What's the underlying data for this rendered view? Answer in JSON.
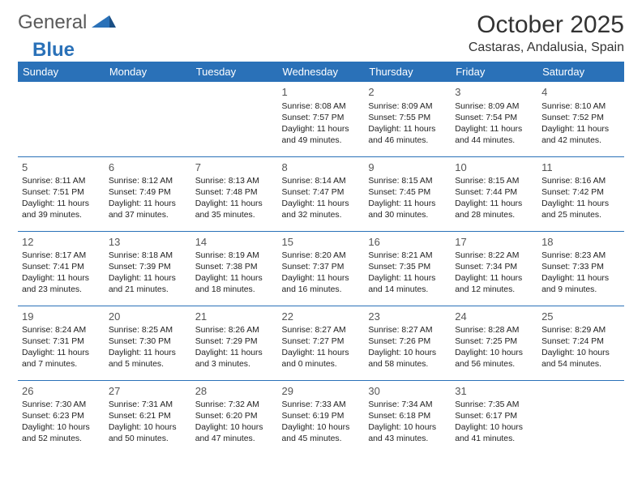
{
  "logo": {
    "general": "General",
    "blue": "Blue"
  },
  "title": "October 2025",
  "subtitle": "Castaras, Andalusia, Spain",
  "colors": {
    "brand": "#2a71b8",
    "text": "#333333",
    "logo_gray": "#5a5a5a",
    "bg": "#ffffff",
    "cell_text": "#222222"
  },
  "weekdays": [
    "Sunday",
    "Monday",
    "Tuesday",
    "Wednesday",
    "Thursday",
    "Friday",
    "Saturday"
  ],
  "weeks": [
    [
      {
        "n": "",
        "l1": "",
        "l2": "",
        "l3": "",
        "l4": ""
      },
      {
        "n": "",
        "l1": "",
        "l2": "",
        "l3": "",
        "l4": ""
      },
      {
        "n": "",
        "l1": "",
        "l2": "",
        "l3": "",
        "l4": ""
      },
      {
        "n": "1",
        "l1": "Sunrise: 8:08 AM",
        "l2": "Sunset: 7:57 PM",
        "l3": "Daylight: 11 hours",
        "l4": "and 49 minutes."
      },
      {
        "n": "2",
        "l1": "Sunrise: 8:09 AM",
        "l2": "Sunset: 7:55 PM",
        "l3": "Daylight: 11 hours",
        "l4": "and 46 minutes."
      },
      {
        "n": "3",
        "l1": "Sunrise: 8:09 AM",
        "l2": "Sunset: 7:54 PM",
        "l3": "Daylight: 11 hours",
        "l4": "and 44 minutes."
      },
      {
        "n": "4",
        "l1": "Sunrise: 8:10 AM",
        "l2": "Sunset: 7:52 PM",
        "l3": "Daylight: 11 hours",
        "l4": "and 42 minutes."
      }
    ],
    [
      {
        "n": "5",
        "l1": "Sunrise: 8:11 AM",
        "l2": "Sunset: 7:51 PM",
        "l3": "Daylight: 11 hours",
        "l4": "and 39 minutes."
      },
      {
        "n": "6",
        "l1": "Sunrise: 8:12 AM",
        "l2": "Sunset: 7:49 PM",
        "l3": "Daylight: 11 hours",
        "l4": "and 37 minutes."
      },
      {
        "n": "7",
        "l1": "Sunrise: 8:13 AM",
        "l2": "Sunset: 7:48 PM",
        "l3": "Daylight: 11 hours",
        "l4": "and 35 minutes."
      },
      {
        "n": "8",
        "l1": "Sunrise: 8:14 AM",
        "l2": "Sunset: 7:47 PM",
        "l3": "Daylight: 11 hours",
        "l4": "and 32 minutes."
      },
      {
        "n": "9",
        "l1": "Sunrise: 8:15 AM",
        "l2": "Sunset: 7:45 PM",
        "l3": "Daylight: 11 hours",
        "l4": "and 30 minutes."
      },
      {
        "n": "10",
        "l1": "Sunrise: 8:15 AM",
        "l2": "Sunset: 7:44 PM",
        "l3": "Daylight: 11 hours",
        "l4": "and 28 minutes."
      },
      {
        "n": "11",
        "l1": "Sunrise: 8:16 AM",
        "l2": "Sunset: 7:42 PM",
        "l3": "Daylight: 11 hours",
        "l4": "and 25 minutes."
      }
    ],
    [
      {
        "n": "12",
        "l1": "Sunrise: 8:17 AM",
        "l2": "Sunset: 7:41 PM",
        "l3": "Daylight: 11 hours",
        "l4": "and 23 minutes."
      },
      {
        "n": "13",
        "l1": "Sunrise: 8:18 AM",
        "l2": "Sunset: 7:39 PM",
        "l3": "Daylight: 11 hours",
        "l4": "and 21 minutes."
      },
      {
        "n": "14",
        "l1": "Sunrise: 8:19 AM",
        "l2": "Sunset: 7:38 PM",
        "l3": "Daylight: 11 hours",
        "l4": "and 18 minutes."
      },
      {
        "n": "15",
        "l1": "Sunrise: 8:20 AM",
        "l2": "Sunset: 7:37 PM",
        "l3": "Daylight: 11 hours",
        "l4": "and 16 minutes."
      },
      {
        "n": "16",
        "l1": "Sunrise: 8:21 AM",
        "l2": "Sunset: 7:35 PM",
        "l3": "Daylight: 11 hours",
        "l4": "and 14 minutes."
      },
      {
        "n": "17",
        "l1": "Sunrise: 8:22 AM",
        "l2": "Sunset: 7:34 PM",
        "l3": "Daylight: 11 hours",
        "l4": "and 12 minutes."
      },
      {
        "n": "18",
        "l1": "Sunrise: 8:23 AM",
        "l2": "Sunset: 7:33 PM",
        "l3": "Daylight: 11 hours",
        "l4": "and 9 minutes."
      }
    ],
    [
      {
        "n": "19",
        "l1": "Sunrise: 8:24 AM",
        "l2": "Sunset: 7:31 PM",
        "l3": "Daylight: 11 hours",
        "l4": "and 7 minutes."
      },
      {
        "n": "20",
        "l1": "Sunrise: 8:25 AM",
        "l2": "Sunset: 7:30 PM",
        "l3": "Daylight: 11 hours",
        "l4": "and 5 minutes."
      },
      {
        "n": "21",
        "l1": "Sunrise: 8:26 AM",
        "l2": "Sunset: 7:29 PM",
        "l3": "Daylight: 11 hours",
        "l4": "and 3 minutes."
      },
      {
        "n": "22",
        "l1": "Sunrise: 8:27 AM",
        "l2": "Sunset: 7:27 PM",
        "l3": "Daylight: 11 hours",
        "l4": "and 0 minutes."
      },
      {
        "n": "23",
        "l1": "Sunrise: 8:27 AM",
        "l2": "Sunset: 7:26 PM",
        "l3": "Daylight: 10 hours",
        "l4": "and 58 minutes."
      },
      {
        "n": "24",
        "l1": "Sunrise: 8:28 AM",
        "l2": "Sunset: 7:25 PM",
        "l3": "Daylight: 10 hours",
        "l4": "and 56 minutes."
      },
      {
        "n": "25",
        "l1": "Sunrise: 8:29 AM",
        "l2": "Sunset: 7:24 PM",
        "l3": "Daylight: 10 hours",
        "l4": "and 54 minutes."
      }
    ],
    [
      {
        "n": "26",
        "l1": "Sunrise: 7:30 AM",
        "l2": "Sunset: 6:23 PM",
        "l3": "Daylight: 10 hours",
        "l4": "and 52 minutes."
      },
      {
        "n": "27",
        "l1": "Sunrise: 7:31 AM",
        "l2": "Sunset: 6:21 PM",
        "l3": "Daylight: 10 hours",
        "l4": "and 50 minutes."
      },
      {
        "n": "28",
        "l1": "Sunrise: 7:32 AM",
        "l2": "Sunset: 6:20 PM",
        "l3": "Daylight: 10 hours",
        "l4": "and 47 minutes."
      },
      {
        "n": "29",
        "l1": "Sunrise: 7:33 AM",
        "l2": "Sunset: 6:19 PM",
        "l3": "Daylight: 10 hours",
        "l4": "and 45 minutes."
      },
      {
        "n": "30",
        "l1": "Sunrise: 7:34 AM",
        "l2": "Sunset: 6:18 PM",
        "l3": "Daylight: 10 hours",
        "l4": "and 43 minutes."
      },
      {
        "n": "31",
        "l1": "Sunrise: 7:35 AM",
        "l2": "Sunset: 6:17 PM",
        "l3": "Daylight: 10 hours",
        "l4": "and 41 minutes."
      },
      {
        "n": "",
        "l1": "",
        "l2": "",
        "l3": "",
        "l4": ""
      }
    ]
  ]
}
